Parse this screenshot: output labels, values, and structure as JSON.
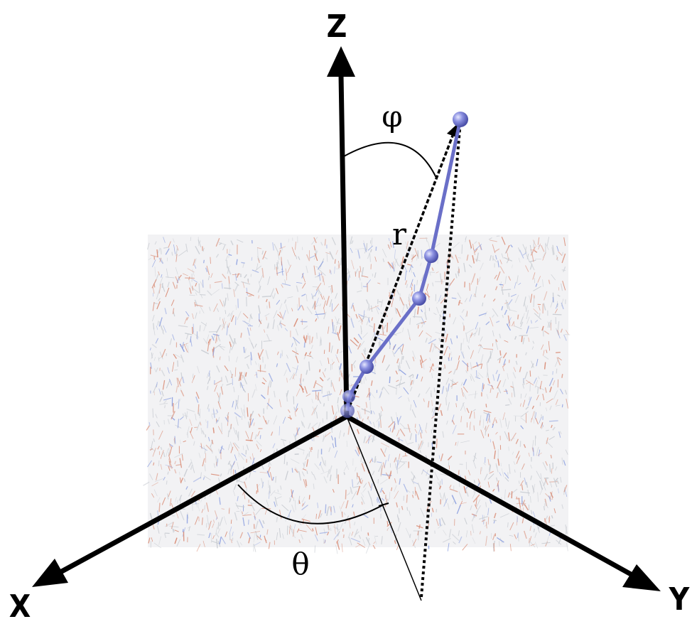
{
  "labels": {
    "z_axis": "Z",
    "x_axis": "X",
    "y_axis": "Y",
    "phi": "φ",
    "theta": "θ",
    "r": "r"
  },
  "colors": {
    "axis": "#000000",
    "bead": "#7a7fd6",
    "bead_bond": "#6a6fc8",
    "membrane_grey": "#c8ccd2",
    "membrane_red": "#d98a73",
    "membrane_blue": "#8a9ee0"
  },
  "polymer": {
    "bead_count": 6
  }
}
